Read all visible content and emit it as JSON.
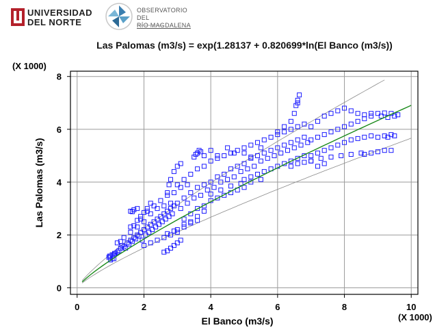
{
  "logos": {
    "university_line1": "UNIVERSIDAD",
    "university_line2": "DEL NORTE",
    "observatory_line1": "OBSERVATORIO DEL",
    "observatory_line2": "RÍO MAGDALENA",
    "observatory_sub": "Universidad del Norte"
  },
  "colors": {
    "points": "#1a1aff",
    "fit_line": "#1a8a1a",
    "band_line": "#8a8a8a",
    "grid": "#9a9a9a",
    "university_mark": "#b3202a"
  },
  "chart_data": {
    "type": "scatter",
    "title": "Las Palomas (m3/s) = exp(1.28137 + 0.820699*ln(El Banco (m3/s))",
    "xlabel": "El Banco (m3/s)",
    "ylabel": "Las Palomas (m3/s)",
    "x_multiplier": "(X 1000)",
    "y_multiplier": "(X 1000)",
    "xlim": [
      -0.2,
      10.2
    ],
    "ylim": [
      -0.25,
      8.2
    ],
    "x_ticks": [
      0,
      2,
      4,
      6,
      8,
      10
    ],
    "y_ticks": [
      0,
      2,
      4,
      6,
      8
    ],
    "grid": true,
    "marker": "open-square",
    "fit": {
      "intercept": 1.28137,
      "slope": 0.820699,
      "model": "exp(a + b*ln(x))"
    },
    "series": [
      {
        "values": [
          [
            0.95,
            1.15
          ],
          [
            1.0,
            1.2
          ],
          [
            1.05,
            1.1
          ],
          [
            1.1,
            1.25
          ],
          [
            1.15,
            1.3
          ],
          [
            1.2,
            1.35
          ],
          [
            1.25,
            1.4
          ],
          [
            1.3,
            1.5
          ],
          [
            1.35,
            1.6
          ],
          [
            1.4,
            1.55
          ],
          [
            1.45,
            1.5
          ],
          [
            1.5,
            1.7
          ],
          [
            1.55,
            1.65
          ],
          [
            1.6,
            1.8
          ],
          [
            1.65,
            1.75
          ],
          [
            1.7,
            1.9
          ],
          [
            1.75,
            1.85
          ],
          [
            1.8,
            2.0
          ],
          [
            1.85,
            1.95
          ],
          [
            1.9,
            2.1
          ],
          [
            1.95,
            1.8
          ],
          [
            2.0,
            2.2
          ],
          [
            2.05,
            2.0
          ],
          [
            2.1,
            2.3
          ],
          [
            2.15,
            2.1
          ],
          [
            2.2,
            2.4
          ],
          [
            2.25,
            2.2
          ],
          [
            2.3,
            2.5
          ],
          [
            2.35,
            2.3
          ],
          [
            2.4,
            2.6
          ],
          [
            2.45,
            2.4
          ],
          [
            2.5,
            2.7
          ],
          [
            2.55,
            2.5
          ],
          [
            2.6,
            2.8
          ],
          [
            2.65,
            2.6
          ],
          [
            2.7,
            2.9
          ],
          [
            2.75,
            2.7
          ],
          [
            2.8,
            3.0
          ],
          [
            2.85,
            2.8
          ],
          [
            2.9,
            3.1
          ],
          [
            1.2,
            1.7
          ],
          [
            1.3,
            1.75
          ],
          [
            1.4,
            1.9
          ],
          [
            1.6,
            2.1
          ],
          [
            1.8,
            2.3
          ],
          [
            2.0,
            2.5
          ],
          [
            2.2,
            2.8
          ],
          [
            2.4,
            3.0
          ],
          [
            2.6,
            3.1
          ],
          [
            2.8,
            3.2
          ],
          [
            1.6,
            2.3
          ],
          [
            1.7,
            2.35
          ],
          [
            1.9,
            2.6
          ],
          [
            2.1,
            2.9
          ],
          [
            2.3,
            3.1
          ],
          [
            2.5,
            3.3
          ],
          [
            2.7,
            3.5
          ],
          [
            2.9,
            3.6
          ],
          [
            3.1,
            3.8
          ],
          [
            3.3,
            3.9
          ],
          [
            2.0,
            1.6
          ],
          [
            2.2,
            1.7
          ],
          [
            2.4,
            1.8
          ],
          [
            2.6,
            1.9
          ],
          [
            2.8,
            2.0
          ],
          [
            3.0,
            2.1
          ],
          [
            3.2,
            2.3
          ],
          [
            3.4,
            2.5
          ],
          [
            3.6,
            2.7
          ],
          [
            3.8,
            2.9
          ],
          [
            2.6,
            1.35
          ],
          [
            2.7,
            1.4
          ],
          [
            2.8,
            1.5
          ],
          [
            2.9,
            1.6
          ],
          [
            3.0,
            1.7
          ],
          [
            3.1,
            1.8
          ],
          [
            3.0,
            3.2
          ],
          [
            3.1,
            3.0
          ],
          [
            3.2,
            3.4
          ],
          [
            3.3,
            3.2
          ],
          [
            3.4,
            3.6
          ],
          [
            3.5,
            3.4
          ],
          [
            3.6,
            3.8
          ],
          [
            3.7,
            3.5
          ],
          [
            3.8,
            3.9
          ],
          [
            3.9,
            3.7
          ],
          [
            4.0,
            4.0
          ],
          [
            4.1,
            3.8
          ],
          [
            4.2,
            4.2
          ],
          [
            4.3,
            4.0
          ],
          [
            4.4,
            4.3
          ],
          [
            4.5,
            4.1
          ],
          [
            4.6,
            4.5
          ],
          [
            4.7,
            4.2
          ],
          [
            4.8,
            4.6
          ],
          [
            4.9,
            4.4
          ],
          [
            3.0,
            3.9
          ],
          [
            3.2,
            4.1
          ],
          [
            3.4,
            4.3
          ],
          [
            3.6,
            4.5
          ],
          [
            3.8,
            4.6
          ],
          [
            4.0,
            4.8
          ],
          [
            4.2,
            4.9
          ],
          [
            4.4,
            5.0
          ],
          [
            4.6,
            5.1
          ],
          [
            4.8,
            5.2
          ],
          [
            3.2,
            2.6
          ],
          [
            3.4,
            2.8
          ],
          [
            3.6,
            3.0
          ],
          [
            3.8,
            3.1
          ],
          [
            4.0,
            3.3
          ],
          [
            4.2,
            3.4
          ],
          [
            4.4,
            3.5
          ],
          [
            4.6,
            3.6
          ],
          [
            4.8,
            3.7
          ],
          [
            5.0,
            3.8
          ],
          [
            5.0,
            4.7
          ],
          [
            5.1,
            4.5
          ],
          [
            5.2,
            4.9
          ],
          [
            5.3,
            4.6
          ],
          [
            5.4,
            5.0
          ],
          [
            5.5,
            4.8
          ],
          [
            5.6,
            5.1
          ],
          [
            5.7,
            4.9
          ],
          [
            5.8,
            5.2
          ],
          [
            5.9,
            5.0
          ],
          [
            6.0,
            5.3
          ],
          [
            6.1,
            5.1
          ],
          [
            6.2,
            5.4
          ],
          [
            6.3,
            5.2
          ],
          [
            6.4,
            5.5
          ],
          [
            6.5,
            5.3
          ],
          [
            6.6,
            5.6
          ],
          [
            6.7,
            5.4
          ],
          [
            6.8,
            5.7
          ],
          [
            6.9,
            5.5
          ],
          [
            5.0,
            5.3
          ],
          [
            5.2,
            5.4
          ],
          [
            5.4,
            5.5
          ],
          [
            5.6,
            5.6
          ],
          [
            5.8,
            5.7
          ],
          [
            6.0,
            5.8
          ],
          [
            6.2,
            5.9
          ],
          [
            6.4,
            6.0
          ],
          [
            6.6,
            6.1
          ],
          [
            6.8,
            6.2
          ],
          [
            5.0,
            4.1
          ],
          [
            5.2,
            4.2
          ],
          [
            5.4,
            4.3
          ],
          [
            5.6,
            4.4
          ],
          [
            5.8,
            4.5
          ],
          [
            6.0,
            4.6
          ],
          [
            6.2,
            4.7
          ],
          [
            6.4,
            4.8
          ],
          [
            6.6,
            4.9
          ],
          [
            6.8,
            5.0
          ],
          [
            7.0,
            5.6
          ],
          [
            7.2,
            5.7
          ],
          [
            7.4,
            5.8
          ],
          [
            7.6,
            5.9
          ],
          [
            7.8,
            6.0
          ],
          [
            8.0,
            6.1
          ],
          [
            8.2,
            6.2
          ],
          [
            8.4,
            6.3
          ],
          [
            8.6,
            6.4
          ],
          [
            8.8,
            6.5
          ],
          [
            7.0,
            6.1
          ],
          [
            7.2,
            6.3
          ],
          [
            7.4,
            6.5
          ],
          [
            7.6,
            6.6
          ],
          [
            7.8,
            6.7
          ],
          [
            8.0,
            6.8
          ],
          [
            8.2,
            6.7
          ],
          [
            8.4,
            6.6
          ],
          [
            8.6,
            6.55
          ],
          [
            8.8,
            6.6
          ],
          [
            7.0,
            5.0
          ],
          [
            7.2,
            5.1
          ],
          [
            7.4,
            5.2
          ],
          [
            7.6,
            5.3
          ],
          [
            7.8,
            5.4
          ],
          [
            8.0,
            5.5
          ],
          [
            8.2,
            5.6
          ],
          [
            8.4,
            5.65
          ],
          [
            8.6,
            5.7
          ],
          [
            8.8,
            5.75
          ],
          [
            9.0,
            6.6
          ],
          [
            9.2,
            6.62
          ],
          [
            9.4,
            6.6
          ],
          [
            9.5,
            6.5
          ],
          [
            9.6,
            6.55
          ],
          [
            9.3,
            6.45
          ],
          [
            9.1,
            6.5
          ],
          [
            9.0,
            5.7
          ],
          [
            9.2,
            5.75
          ],
          [
            9.4,
            5.8
          ],
          [
            9.5,
            5.75
          ],
          [
            9.3,
            5.7
          ],
          [
            8.8,
            5.1
          ],
          [
            9.0,
            5.15
          ],
          [
            9.2,
            5.2
          ],
          [
            9.4,
            5.2
          ],
          [
            8.6,
            5.05
          ],
          [
            7.0,
            4.8
          ],
          [
            7.3,
            4.9
          ],
          [
            7.6,
            4.95
          ],
          [
            7.9,
            5.0
          ],
          [
            8.2,
            5.05
          ],
          [
            8.5,
            5.1
          ],
          [
            6.0,
            5.9
          ],
          [
            6.2,
            6.1
          ],
          [
            6.4,
            6.3
          ],
          [
            6.5,
            6.6
          ],
          [
            6.55,
            6.9
          ],
          [
            6.6,
            7.1
          ],
          [
            6.65,
            7.3
          ],
          [
            6.6,
            7.0
          ],
          [
            6.4,
            4.6
          ],
          [
            6.6,
            4.7
          ],
          [
            6.8,
            4.75
          ],
          [
            7.0,
            4.8
          ],
          [
            7.2,
            4.6
          ],
          [
            7.4,
            4.7
          ],
          [
            3.5,
            4.95
          ],
          [
            3.6,
            5.1
          ],
          [
            3.65,
            5.2
          ],
          [
            3.7,
            5.15
          ],
          [
            3.55,
            5.05
          ],
          [
            2.8,
            4.1
          ],
          [
            2.9,
            4.4
          ],
          [
            3.0,
            4.6
          ],
          [
            3.1,
            4.7
          ],
          [
            2.75,
            3.9
          ],
          [
            2.7,
            3.6
          ],
          [
            2.0,
            2.85
          ],
          [
            2.1,
            3.0
          ],
          [
            2.2,
            3.2
          ],
          [
            1.9,
            2.7
          ],
          [
            1.8,
            2.55
          ],
          [
            1.6,
            2.9
          ],
          [
            1.7,
            2.95
          ],
          [
            1.8,
            3.0
          ],
          [
            1.65,
            2.88
          ],
          [
            1.0,
            1.05
          ],
          [
            1.05,
            1.25
          ],
          [
            1.1,
            1.1
          ],
          [
            1.12,
            1.3
          ],
          [
            0.97,
            1.2
          ],
          [
            3.8,
            5.0
          ],
          [
            4.0,
            5.2
          ],
          [
            4.2,
            5.0
          ],
          [
            4.5,
            5.3
          ],
          [
            4.7,
            5.1
          ],
          [
            5.0,
            5.1
          ],
          [
            5.5,
            5.3
          ],
          [
            5.2,
            4.95
          ],
          [
            4.0,
            3.55
          ],
          [
            4.3,
            3.7
          ],
          [
            4.6,
            3.85
          ],
          [
            4.9,
            3.95
          ],
          [
            5.2,
            4.0
          ],
          [
            5.5,
            4.1
          ],
          [
            3.0,
            2.2
          ],
          [
            3.2,
            2.4
          ],
          [
            3.4,
            2.45
          ],
          [
            3.6,
            2.55
          ],
          [
            2.9,
            2.15
          ],
          [
            2.7,
            2.05
          ]
        ]
      }
    ]
  }
}
